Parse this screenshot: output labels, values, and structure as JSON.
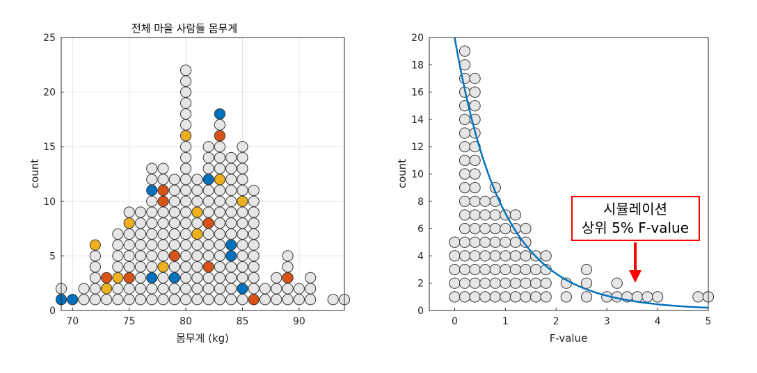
{
  "chart_data": [
    {
      "type": "scatter",
      "title": "전체 마을 사람들 몸무게",
      "xlabel": "몸무게 (kg)",
      "ylabel": "count",
      "xlim": [
        69,
        94
      ],
      "ylim": [
        0,
        25
      ],
      "xticks": [
        "70",
        "75",
        "80",
        "85",
        "90"
      ],
      "yticks": [
        "0",
        "5",
        "10",
        "15",
        "20",
        "25"
      ],
      "grid": true,
      "colors": {
        "default": "#e6e6e6",
        "blue": "#0072bd",
        "orange": "#d95319",
        "yellow": "#edb120",
        "edge": "#333333"
      },
      "columns": [
        {
          "x": 69,
          "n": 2,
          "c": {
            "1": "blue"
          }
        },
        {
          "x": 70,
          "n": 1,
          "c": {
            "1": "blue"
          }
        },
        {
          "x": 71,
          "n": 2
        },
        {
          "x": 72,
          "n": 6,
          "c": {
            "6": "yellow"
          }
        },
        {
          "x": 73,
          "n": 3,
          "c": {
            "3": "orange",
            "2": "yellow"
          }
        },
        {
          "x": 74,
          "n": 7,
          "c": {
            "3": "yellow"
          }
        },
        {
          "x": 75,
          "n": 9,
          "c": {
            "8": "yellow",
            "3": "orange"
          }
        },
        {
          "x": 76,
          "n": 9
        },
        {
          "x": 77,
          "n": 13,
          "c": {
            "11": "blue",
            "3": "blue"
          }
        },
        {
          "x": 78,
          "n": 13,
          "c": {
            "11": "orange",
            "10": "orange",
            "4": "yellow"
          }
        },
        {
          "x": 79,
          "n": 12,
          "c": {
            "5": "orange",
            "3": "blue"
          }
        },
        {
          "x": 80,
          "n": 22,
          "c": {
            "16": "yellow"
          }
        },
        {
          "x": 81,
          "n": 12,
          "c": {
            "9": "yellow",
            "7": "yellow"
          }
        },
        {
          "x": 82,
          "n": 15,
          "c": {
            "12": "blue",
            "8": "orange",
            "4": "orange"
          }
        },
        {
          "x": 83,
          "n": 18,
          "c": {
            "18": "blue",
            "16": "orange",
            "12": "yellow"
          }
        },
        {
          "x": 84,
          "n": 14,
          "c": {
            "6": "blue",
            "5": "blue"
          }
        },
        {
          "x": 85,
          "n": 15,
          "c": {
            "10": "yellow",
            "2": "blue"
          }
        },
        {
          "x": 86,
          "n": 11,
          "c": {
            "1": "orange"
          }
        },
        {
          "x": 87,
          "n": 2
        },
        {
          "x": 88,
          "n": 3
        },
        {
          "x": 89,
          "n": 5,
          "c": {
            "3": "orange"
          }
        },
        {
          "x": 90,
          "n": 2
        },
        {
          "x": 91,
          "n": 3
        },
        {
          "x": 93,
          "n": 1
        },
        {
          "x": 94,
          "n": 1
        }
      ]
    },
    {
      "type": "scatter",
      "title": "",
      "xlabel": "F-value",
      "ylabel": "count",
      "xlim": [
        -0.5,
        5
      ],
      "ylim": [
        0,
        20
      ],
      "xticks": [
        "0",
        "1",
        "2",
        "3",
        "4",
        "5"
      ],
      "yticks": [
        "0",
        "2",
        "4",
        "6",
        "8",
        "10",
        "12",
        "14",
        "16",
        "18",
        "20"
      ],
      "grid": false,
      "curve": {
        "type": "line",
        "color": "#0072bd",
        "description": "F distribution density scaled to counts"
      },
      "annotation": {
        "line1": "시뮬레이션",
        "line2": "상위 5% F-value",
        "box_color": "#ff0000",
        "arrow_color": "#ff0000",
        "points_to_x": 3.55
      },
      "columns": [
        {
          "x": 0.0,
          "n": 5
        },
        {
          "x": 0.2,
          "n": 19
        },
        {
          "x": 0.4,
          "n": 17
        },
        {
          "x": 0.6,
          "n": 8
        },
        {
          "x": 0.8,
          "n": 9
        },
        {
          "x": 1.0,
          "n": 7
        },
        {
          "x": 1.2,
          "n": 7
        },
        {
          "x": 1.4,
          "n": 6
        },
        {
          "x": 1.6,
          "n": 4
        },
        {
          "x": 1.8,
          "n": 4
        },
        {
          "x": 2.2,
          "n": 2
        },
        {
          "x": 2.6,
          "n": 3
        },
        {
          "x": 3.0,
          "n": 1
        },
        {
          "x": 3.2,
          "n": 2
        },
        {
          "x": 3.4,
          "n": 1
        },
        {
          "x": 3.6,
          "n": 1
        },
        {
          "x": 3.8,
          "n": 1
        },
        {
          "x": 4.0,
          "n": 1
        },
        {
          "x": 4.8,
          "n": 1
        },
        {
          "x": 5.0,
          "n": 1
        }
      ]
    }
  ]
}
